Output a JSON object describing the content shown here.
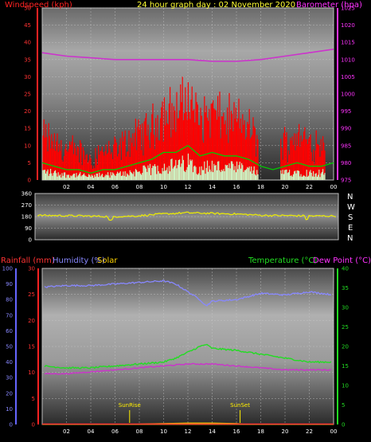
{
  "header": {
    "left_label": "Windspeed (kph)",
    "center_title": "24 hour graph day : 02 November 2020",
    "right_label": "Barometer (hpa)"
  },
  "colors": {
    "wind_gust": "#ff0000",
    "wind_avg": "#00cc00",
    "wind_low": "#ccffcc",
    "barometer": "#cc33cc",
    "direction": "#eeee00",
    "humidity": "#8888ff",
    "temperature": "#22dd22",
    "dewpoint": "#cc33cc",
    "rainfall": "#ff3333",
    "solar": "#ffd400",
    "sunmarker": "#ffee00"
  },
  "compass": [
    "N",
    "W",
    "S",
    "E",
    "N"
  ],
  "bottom_header": {
    "rainfall": "Rainfall (mm)",
    "humidity": "Humidity (%)",
    "solar": "Solar",
    "temperature": "Temperature (°C)",
    "dewpoint": "Dew Point (°C)"
  },
  "chart_data": [
    {
      "type": "line",
      "name": "wind-barometer",
      "x_ticks": [
        "02",
        "04",
        "06",
        "08",
        "10",
        "12",
        "14",
        "16",
        "18",
        "20",
        "22",
        "00"
      ],
      "left_axis": {
        "label": "Windspeed (kph)",
        "ylim": [
          0,
          50
        ],
        "ticks": [
          "0",
          "5",
          "10",
          "15",
          "20",
          "25",
          "30",
          "35",
          "40",
          "45",
          "50"
        ]
      },
      "right_axis": {
        "label": "Barometer (hpa)",
        "ylim": [
          975,
          1025
        ],
        "ticks": [
          "975",
          "980",
          "985",
          "990",
          "995",
          "1000",
          "1005",
          "1010",
          "1015",
          "1020",
          "1025"
        ]
      },
      "series": [
        {
          "name": "Barometer (hpa)",
          "axis": "right",
          "x": [
            0,
            2,
            4,
            6,
            8,
            10,
            12,
            14,
            16,
            18,
            20,
            22,
            24
          ],
          "values": [
            1012,
            1011,
            1010.5,
            1010,
            1010,
            1010,
            1010,
            1009.5,
            1009.5,
            1010,
            1011,
            1012,
            1013
          ]
        },
        {
          "name": "Windspeed (kph)",
          "axis": "left",
          "x": [
            0,
            1,
            2,
            3,
            4,
            5,
            6,
            7,
            8,
            9,
            10,
            11,
            12,
            13,
            14,
            15,
            16,
            17,
            18,
            19,
            20,
            21,
            22,
            23,
            24
          ],
          "values": [
            5,
            4,
            3,
            3,
            2,
            3,
            3,
            4,
            5,
            6,
            8,
            8,
            10,
            7,
            8,
            7,
            7,
            6,
            4,
            3,
            4,
            5,
            4,
            4,
            5
          ]
        }
      ],
      "gust_range_kph": [
        8,
        30
      ]
    },
    {
      "type": "line",
      "name": "wind-direction",
      "left_axis": {
        "ylim": [
          0,
          360
        ],
        "ticks": [
          "0",
          "90",
          "180",
          "270",
          "360"
        ]
      },
      "series": [
        {
          "name": "Wind direction",
          "x": [
            0,
            2,
            4,
            6,
            8,
            10,
            12,
            14,
            16,
            18,
            20,
            22,
            24
          ],
          "values": [
            190,
            188,
            185,
            180,
            185,
            200,
            210,
            205,
            200,
            190,
            188,
            185,
            185
          ]
        }
      ]
    },
    {
      "type": "line",
      "name": "temp-humidity",
      "x_ticks": [
        "02",
        "04",
        "06",
        "08",
        "10",
        "12",
        "14",
        "16",
        "18",
        "20",
        "22",
        "00"
      ],
      "humidity_axis": {
        "ylim": [
          0,
          100
        ],
        "ticks": [
          "0",
          "10",
          "20",
          "30",
          "40",
          "50",
          "60",
          "70",
          "80",
          "90",
          "100"
        ]
      },
      "rain_axis": {
        "ylim": [
          0,
          30
        ],
        "ticks": [
          "0",
          "5",
          "10",
          "15",
          "20",
          "25",
          "30"
        ]
      },
      "temp_axis": {
        "ylim": [
          0,
          40
        ],
        "ticks": [
          "0",
          "5",
          "10",
          "15",
          "20",
          "25",
          "30",
          "35",
          "40"
        ]
      },
      "series": [
        {
          "name": "Humidity (%)",
          "axis": "humidity",
          "x": [
            0,
            2,
            4,
            6,
            8,
            10,
            11,
            12,
            13,
            13.5,
            14,
            16,
            18,
            20,
            22,
            24
          ],
          "values": [
            88,
            89,
            89,
            90,
            91,
            92,
            90,
            85,
            80,
            76,
            79,
            80,
            84,
            83,
            85,
            83
          ]
        },
        {
          "name": "Temperature (°C)",
          "axis": "temp",
          "x": [
            0,
            2,
            4,
            6,
            8,
            10,
            11,
            12,
            13,
            13.5,
            14,
            16,
            18,
            20,
            22,
            24
          ],
          "values": [
            15,
            14.5,
            14.5,
            15,
            15.5,
            16,
            17,
            18.5,
            20,
            20.5,
            19.5,
            19,
            18,
            17,
            16,
            16
          ]
        },
        {
          "name": "Dew Point (°C)",
          "axis": "temp",
          "x": [
            0,
            2,
            4,
            6,
            8,
            10,
            12,
            14,
            16,
            18,
            20,
            22,
            24
          ],
          "values": [
            13,
            13,
            13.5,
            14,
            14.5,
            15,
            15.5,
            15.5,
            15,
            14.5,
            14,
            14,
            14
          ]
        },
        {
          "name": "Rainfall (mm)",
          "axis": "rain",
          "x": [
            0,
            24
          ],
          "values": [
            0,
            0
          ]
        },
        {
          "name": "Solar",
          "axis": "rain",
          "x": [
            0,
            7,
            8,
            10,
            12,
            14,
            16,
            17,
            24
          ],
          "values": [
            0,
            0,
            0.1,
            0.2,
            0.3,
            0.3,
            0.2,
            0,
            0
          ]
        }
      ],
      "annotations": [
        {
          "text": "SunRise",
          "x": 7.2
        },
        {
          "text": "SunSet",
          "x": 16.3
        }
      ]
    }
  ]
}
